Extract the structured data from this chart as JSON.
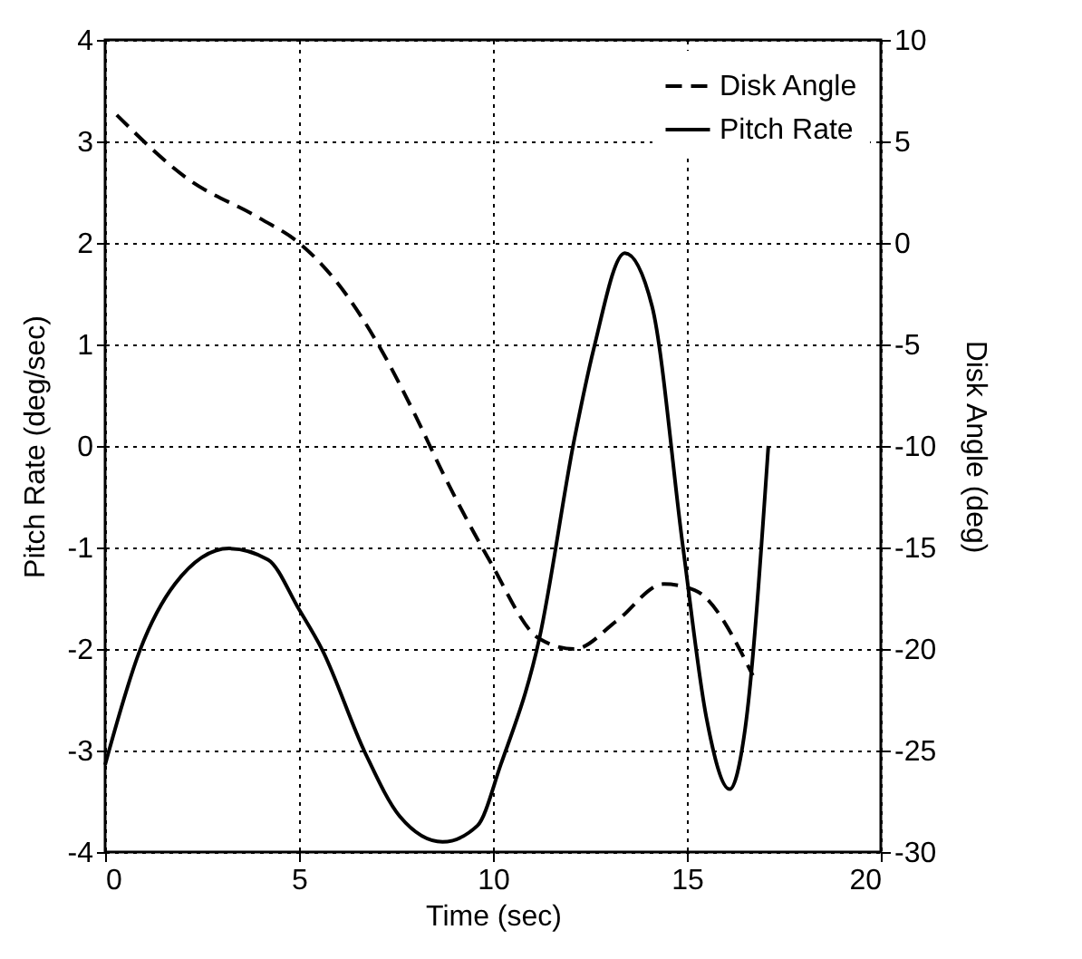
{
  "chart_data": {
    "type": "line",
    "xlabel": "Time (sec)",
    "ylabel": "Pitch Rate (deg/sec)",
    "y2label": "Disk Angle (deg)",
    "xlim": [
      0,
      20
    ],
    "xticks": [
      0,
      5,
      10,
      15,
      20
    ],
    "ylim": [
      -4,
      4
    ],
    "yticks": [
      -4,
      -3,
      -2,
      -1,
      0,
      1,
      2,
      3,
      4
    ],
    "y2lim": [
      -30,
      10
    ],
    "y2ticks": [
      -30,
      -25,
      -20,
      -15,
      -10,
      -5,
      0,
      5,
      10
    ],
    "grid": true,
    "legend": "top right",
    "series": [
      {
        "name": "Disk Angle",
        "color": "#000000",
        "axis": "y2",
        "line_style": "dashed",
        "x": [
          0.3,
          2.1,
          4.0,
          5.0,
          6.2,
          7.1,
          8.0,
          8.7,
          9.9,
          11.2,
          12.1,
          13.2,
          14.4,
          15.2,
          16.7
        ],
        "values": [
          6.3,
          3.2,
          1.2,
          0,
          -2.5,
          -5.2,
          -8.5,
          -11.3,
          -15.6,
          -19.5,
          -20,
          -18.6,
          -16.8,
          -17.1,
          -21.3
        ]
      },
      {
        "name": "Pitch Rate",
        "color": "#000000",
        "line_style": "solid",
        "x": [
          0,
          0.9,
          1.8,
          3.2,
          4.2,
          5.0,
          5.6,
          6.7,
          7.6,
          8.7,
          9.6,
          10.2,
          11.2,
          12.1,
          12.6,
          13.4,
          14.1,
          14.9,
          15.5,
          16.1,
          16.5,
          17.1
        ],
        "values": [
          -3.14,
          -2.01,
          -1.36,
          -1.01,
          -1.12,
          -1.61,
          -2.01,
          -3.02,
          -3.65,
          -3.9,
          -3.74,
          -3.14,
          -1.89,
          0.07,
          0.96,
          1.9,
          1.38,
          -1.0,
          -2.67,
          -3.38,
          -2.79,
          0
        ]
      }
    ]
  }
}
